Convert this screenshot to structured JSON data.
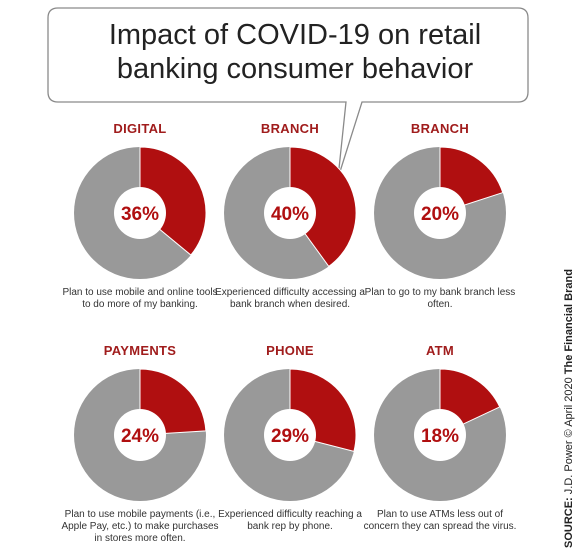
{
  "title": "Impact of COVID-19 on retail banking consumer behavior",
  "source": {
    "label": "SOURCE:",
    "org": "J.D. Power © April 2020",
    "brand": "The Financial Brand"
  },
  "colors": {
    "highlight": "#b00f10",
    "remainder": "#999999",
    "heading": "#a01c1c"
  },
  "chart_data": [
    {
      "type": "pie",
      "title": "DIGITAL",
      "value": 36,
      "value_label": "36%",
      "caption": "Plan to use mobile and online tools to do more of my banking."
    },
    {
      "type": "pie",
      "title": "BRANCH",
      "value": 40,
      "value_label": "40%",
      "caption": "Experienced difficulty accessing a bank branch when desired."
    },
    {
      "type": "pie",
      "title": "BRANCH",
      "value": 20,
      "value_label": "20%",
      "caption": "Plan to go to my bank branch less often."
    },
    {
      "type": "pie",
      "title": "PAYMENTS",
      "value": 24,
      "value_label": "24%",
      "caption": "Plan to use mobile payments (i.e., Apple Pay, etc.) to make purchases in stores more often."
    },
    {
      "type": "pie",
      "title": "PHONE",
      "value": 29,
      "value_label": "29%",
      "caption": "Experienced difficulty reaching a bank rep by phone."
    },
    {
      "type": "pie",
      "title": "ATM",
      "value": 18,
      "value_label": "18%",
      "caption": "Plan to use ATMs less out of concern they can spread the virus."
    }
  ]
}
